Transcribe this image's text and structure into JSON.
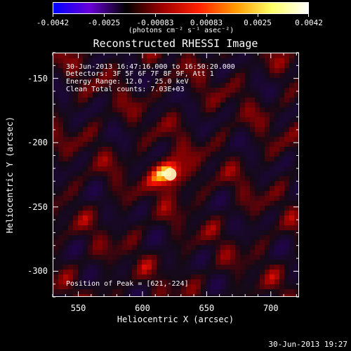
{
  "colorbar": {
    "tick_labels": [
      "-0.0042",
      "-0.0025",
      "-0.00083",
      "0.00083",
      "0.0025",
      "0.0042"
    ],
    "unit_label": "(photons cm⁻² s⁻¹ asec⁻²)",
    "colors": [
      "#0000ff",
      "#6a00d8",
      "#000000",
      "#a00000",
      "#ff2000",
      "#ff9900",
      "#ffff66",
      "#ffffff"
    ]
  },
  "title": "Reconstructed RHESSI Image",
  "info": {
    "time_range": "30-Jun-2013 16:47:16.000 to 16:50:20.000",
    "detectors": "Detectors: 3F 5F 6F 7F 8F 9F, Att 1",
    "energy_range": "Energy Range: 12.0 - 25.0 keV",
    "method": "Clean    Total counts: 7.03E+03",
    "peak": "Position of Peak = [621,-224]"
  },
  "axes": {
    "x_label": "Heliocentric X (arcsec)",
    "y_label": "Heliocentric Y (arcsec)",
    "x_ticks": [
      "550",
      "600",
      "650",
      "700"
    ],
    "y_ticks": [
      "-150",
      "-200",
      "-250",
      "-300"
    ],
    "x_range": [
      530,
      722
    ],
    "y_range": [
      -320,
      -130
    ]
  },
  "source": {
    "peak_x": 621,
    "peak_y": -224
  },
  "footer_timestamp": "30-Jun-2013 19:27"
}
